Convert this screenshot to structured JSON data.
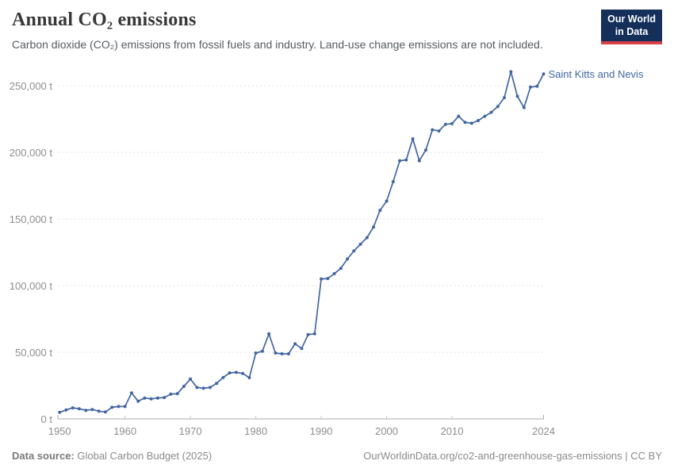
{
  "header": {
    "title": "Annual CO₂ emissions",
    "subtitle": "Carbon dioxide (CO₂) emissions from fossil fuels and industry. Land-use change emissions are not included.",
    "logo": {
      "line1": "Our World",
      "line2": "in Data",
      "bg_color": "#132f5a",
      "accent_color": "#d8404a"
    }
  },
  "chart_data": {
    "type": "line",
    "title": "Annual CO₂ emissions",
    "xlabel": "",
    "ylabel": "",
    "unit": "t",
    "grid": "horizontal-dashed",
    "legend_position": "end-of-line",
    "xlim": [
      1950,
      2024
    ],
    "ylim": [
      0,
      265000
    ],
    "x_ticks": [
      1950,
      1960,
      1970,
      1980,
      1990,
      2000,
      2010,
      2024
    ],
    "y_ticks": [
      0,
      50000,
      100000,
      150000,
      200000,
      250000
    ],
    "y_tick_labels": [
      "0 t",
      "50,000 t",
      "100,000 t",
      "150,000 t",
      "200,000 t",
      "250,000 t"
    ],
    "series": [
      {
        "name": "Saint Kitts and Nevis",
        "color": "#4266a3",
        "x": [
          1950,
          1951,
          1952,
          1953,
          1954,
          1955,
          1956,
          1957,
          1958,
          1959,
          1960,
          1961,
          1962,
          1963,
          1964,
          1965,
          1966,
          1967,
          1968,
          1969,
          1970,
          1971,
          1972,
          1973,
          1974,
          1975,
          1976,
          1977,
          1978,
          1979,
          1980,
          1981,
          1982,
          1983,
          1984,
          1985,
          1986,
          1987,
          1988,
          1989,
          1990,
          1991,
          1992,
          1993,
          1994,
          1995,
          1996,
          1997,
          1998,
          1999,
          2000,
          2001,
          2002,
          2003,
          2004,
          2005,
          2006,
          2007,
          2008,
          2009,
          2010,
          2011,
          2012,
          2013,
          2014,
          2015,
          2016,
          2017,
          2018,
          2019,
          2020,
          2021,
          2022,
          2023,
          2024
        ],
        "values": [
          4900,
          6700,
          8300,
          7600,
          6400,
          7000,
          5800,
          5200,
          8700,
          9300,
          9300,
          19500,
          13300,
          15650,
          15000,
          15650,
          16000,
          18600,
          18900,
          24400,
          29900,
          23600,
          23000,
          23600,
          26600,
          31000,
          34500,
          34900,
          34100,
          30900,
          49400,
          50800,
          63800,
          49400,
          48800,
          48800,
          56300,
          52800,
          63300,
          63800,
          105000,
          105300,
          108900,
          113000,
          120000,
          126000,
          131000,
          136000,
          144000,
          156500,
          163400,
          178000,
          193700,
          194300,
          210100,
          193700,
          201700,
          216900,
          216000,
          221000,
          221500,
          227100,
          222500,
          221800,
          223800,
          227000,
          230000,
          234400,
          241000,
          260500,
          242000,
          233600,
          248900,
          249500,
          258800
        ]
      }
    ]
  },
  "footer": {
    "source_label": "Data source:",
    "source_text": " Global Carbon Budget (2025)",
    "link_text": "OurWorldinData.org/co2-and-greenhouse-gas-emissions | CC BY"
  }
}
